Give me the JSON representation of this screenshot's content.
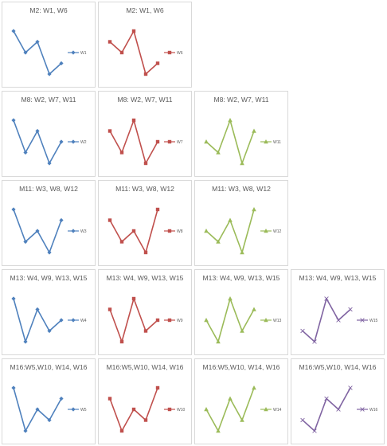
{
  "colors": {
    "blue": "#4f81bd",
    "red": "#c0504d",
    "green": "#9bbb59",
    "purple": "#8064a2",
    "panel_border": "#d9d9d9",
    "title_text": "#595959"
  },
  "chart_data": [
    {
      "type": "line",
      "title": "M2: W1, W6",
      "x": [
        1,
        2,
        3,
        4,
        5
      ],
      "series": [
        {
          "name": "W1",
          "values": [
            5,
            3,
            4,
            1,
            2
          ],
          "color": "#4f81bd",
          "marker": "diamond"
        }
      ]
    },
    {
      "type": "line",
      "title": "M2: W1, W6",
      "x": [
        1,
        2,
        3,
        4,
        5
      ],
      "series": [
        {
          "name": "W6",
          "values": [
            4,
            3,
            5,
            1,
            2
          ],
          "color": "#c0504d",
          "marker": "square"
        }
      ]
    },
    {
      "type": "line",
      "title": "M8: W2, W7, W11",
      "x": [
        1,
        2,
        3,
        4,
        5
      ],
      "series": [
        {
          "name": "W2",
          "values": [
            5,
            2,
            4,
            1,
            3
          ],
          "color": "#4f81bd",
          "marker": "diamond"
        }
      ]
    },
    {
      "type": "line",
      "title": "M8: W2, W7, W11",
      "x": [
        1,
        2,
        3,
        4,
        5
      ],
      "series": [
        {
          "name": "W7",
          "values": [
            4,
            2,
            5,
            1,
            3
          ],
          "color": "#c0504d",
          "marker": "square"
        }
      ]
    },
    {
      "type": "line",
      "title": "M8: W2, W7, W11",
      "x": [
        1,
        2,
        3,
        4,
        5
      ],
      "series": [
        {
          "name": "W11",
          "values": [
            3,
            2,
            5,
            1,
            4
          ],
          "color": "#9bbb59",
          "marker": "triangle"
        }
      ]
    },
    {
      "type": "line",
      "title": "M11: W3, W8, W12",
      "x": [
        1,
        2,
        3,
        4,
        5
      ],
      "series": [
        {
          "name": "W3",
          "values": [
            5,
            2,
            3,
            1,
            4
          ],
          "color": "#4f81bd",
          "marker": "diamond"
        }
      ]
    },
    {
      "type": "line",
      "title": "M11: W3, W8, W12",
      "x": [
        1,
        2,
        3,
        4,
        5
      ],
      "series": [
        {
          "name": "W8",
          "values": [
            4,
            2,
            3,
            1,
            5
          ],
          "color": "#c0504d",
          "marker": "square"
        }
      ]
    },
    {
      "type": "line",
      "title": "M11: W3, W8, W12",
      "x": [
        1,
        2,
        3,
        4,
        5
      ],
      "series": [
        {
          "name": "W12",
          "values": [
            3,
            2,
            4,
            1,
            5
          ],
          "color": "#9bbb59",
          "marker": "triangle"
        }
      ]
    },
    {
      "type": "line",
      "title": "M13: W4, W9, W13, W15",
      "x": [
        1,
        2,
        3,
        4,
        5
      ],
      "series": [
        {
          "name": "W4",
          "values": [
            5,
            1,
            4,
            2,
            3
          ],
          "color": "#4f81bd",
          "marker": "diamond"
        }
      ]
    },
    {
      "type": "line",
      "title": "M13: W4, W9, W13, W15",
      "x": [
        1,
        2,
        3,
        4,
        5
      ],
      "series": [
        {
          "name": "W9",
          "values": [
            4,
            1,
            5,
            2,
            3
          ],
          "color": "#c0504d",
          "marker": "square"
        }
      ]
    },
    {
      "type": "line",
      "title": "M13: W4, W9, W13, W15",
      "x": [
        1,
        2,
        3,
        4,
        5
      ],
      "series": [
        {
          "name": "W13",
          "values": [
            3,
            1,
            5,
            2,
            4
          ],
          "color": "#9bbb59",
          "marker": "triangle"
        }
      ]
    },
    {
      "type": "line",
      "title": "M13: W4, W9, W13, W15",
      "x": [
        1,
        2,
        3,
        4,
        5
      ],
      "series": [
        {
          "name": "W15",
          "values": [
            2,
            1,
            5,
            3,
            4
          ],
          "color": "#8064a2",
          "marker": "x"
        }
      ]
    },
    {
      "type": "line",
      "title": "M16:W5,W10, W14, W16",
      "x": [
        1,
        2,
        3,
        4,
        5
      ],
      "series": [
        {
          "name": "W5",
          "values": [
            5,
            1,
            3,
            2,
            4
          ],
          "color": "#4f81bd",
          "marker": "diamond"
        }
      ]
    },
    {
      "type": "line",
      "title": "M16:W5,W10, W14, W16",
      "x": [
        1,
        2,
        3,
        4,
        5
      ],
      "series": [
        {
          "name": "W10",
          "values": [
            4,
            1,
            3,
            2,
            5
          ],
          "color": "#c0504d",
          "marker": "square"
        }
      ]
    },
    {
      "type": "line",
      "title": "M16:W5,W10, W14, W16",
      "x": [
        1,
        2,
        3,
        4,
        5
      ],
      "series": [
        {
          "name": "W14",
          "values": [
            3,
            1,
            4,
            2,
            5
          ],
          "color": "#9bbb59",
          "marker": "triangle"
        }
      ]
    },
    {
      "type": "line",
      "title": "M16:W5,W10, W14, W16",
      "x": [
        1,
        2,
        3,
        4,
        5
      ],
      "series": [
        {
          "name": "W16",
          "values": [
            2,
            1,
            4,
            3,
            5
          ],
          "color": "#8064a2",
          "marker": "x"
        }
      ]
    }
  ]
}
